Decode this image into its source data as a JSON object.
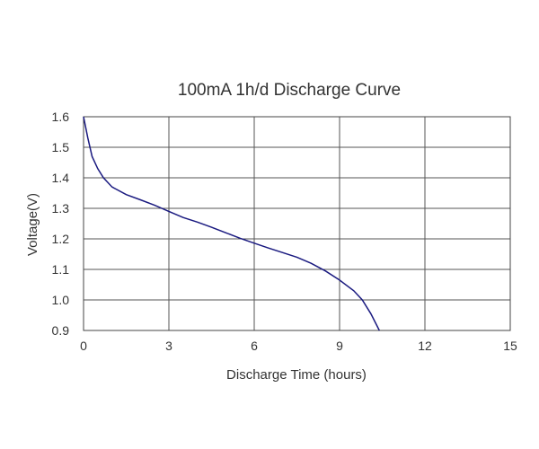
{
  "chart_data": {
    "type": "line",
    "title": "100mA 1h/d Discharge Curve",
    "xlabel": "Discharge Time (hours)",
    "ylabel": "Voltage(V)",
    "xlim": [
      0,
      15
    ],
    "ylim": [
      0.9,
      1.6
    ],
    "xticks": [
      "0",
      "3",
      "6",
      "9",
      "12",
      "15"
    ],
    "yticks": [
      "1.6",
      "1.5",
      "1.4",
      "1.3",
      "1.2",
      "1.1",
      "1.0",
      "0.9"
    ],
    "grid": true,
    "series": [
      {
        "color": "#1a1a80",
        "x": [
          0,
          0.15,
          0.3,
          0.5,
          0.7,
          1.0,
          1.5,
          2.0,
          2.5,
          3.0,
          3.5,
          4.0,
          4.5,
          5.0,
          5.5,
          6.0,
          6.5,
          7.0,
          7.5,
          8.0,
          8.5,
          9.0,
          9.5,
          9.8,
          10.1,
          10.4
        ],
        "y": [
          1.6,
          1.53,
          1.47,
          1.43,
          1.4,
          1.37,
          1.345,
          1.328,
          1.31,
          1.29,
          1.27,
          1.255,
          1.238,
          1.22,
          1.202,
          1.186,
          1.17,
          1.155,
          1.14,
          1.12,
          1.095,
          1.065,
          1.03,
          1.0,
          0.955,
          0.9
        ]
      }
    ]
  }
}
